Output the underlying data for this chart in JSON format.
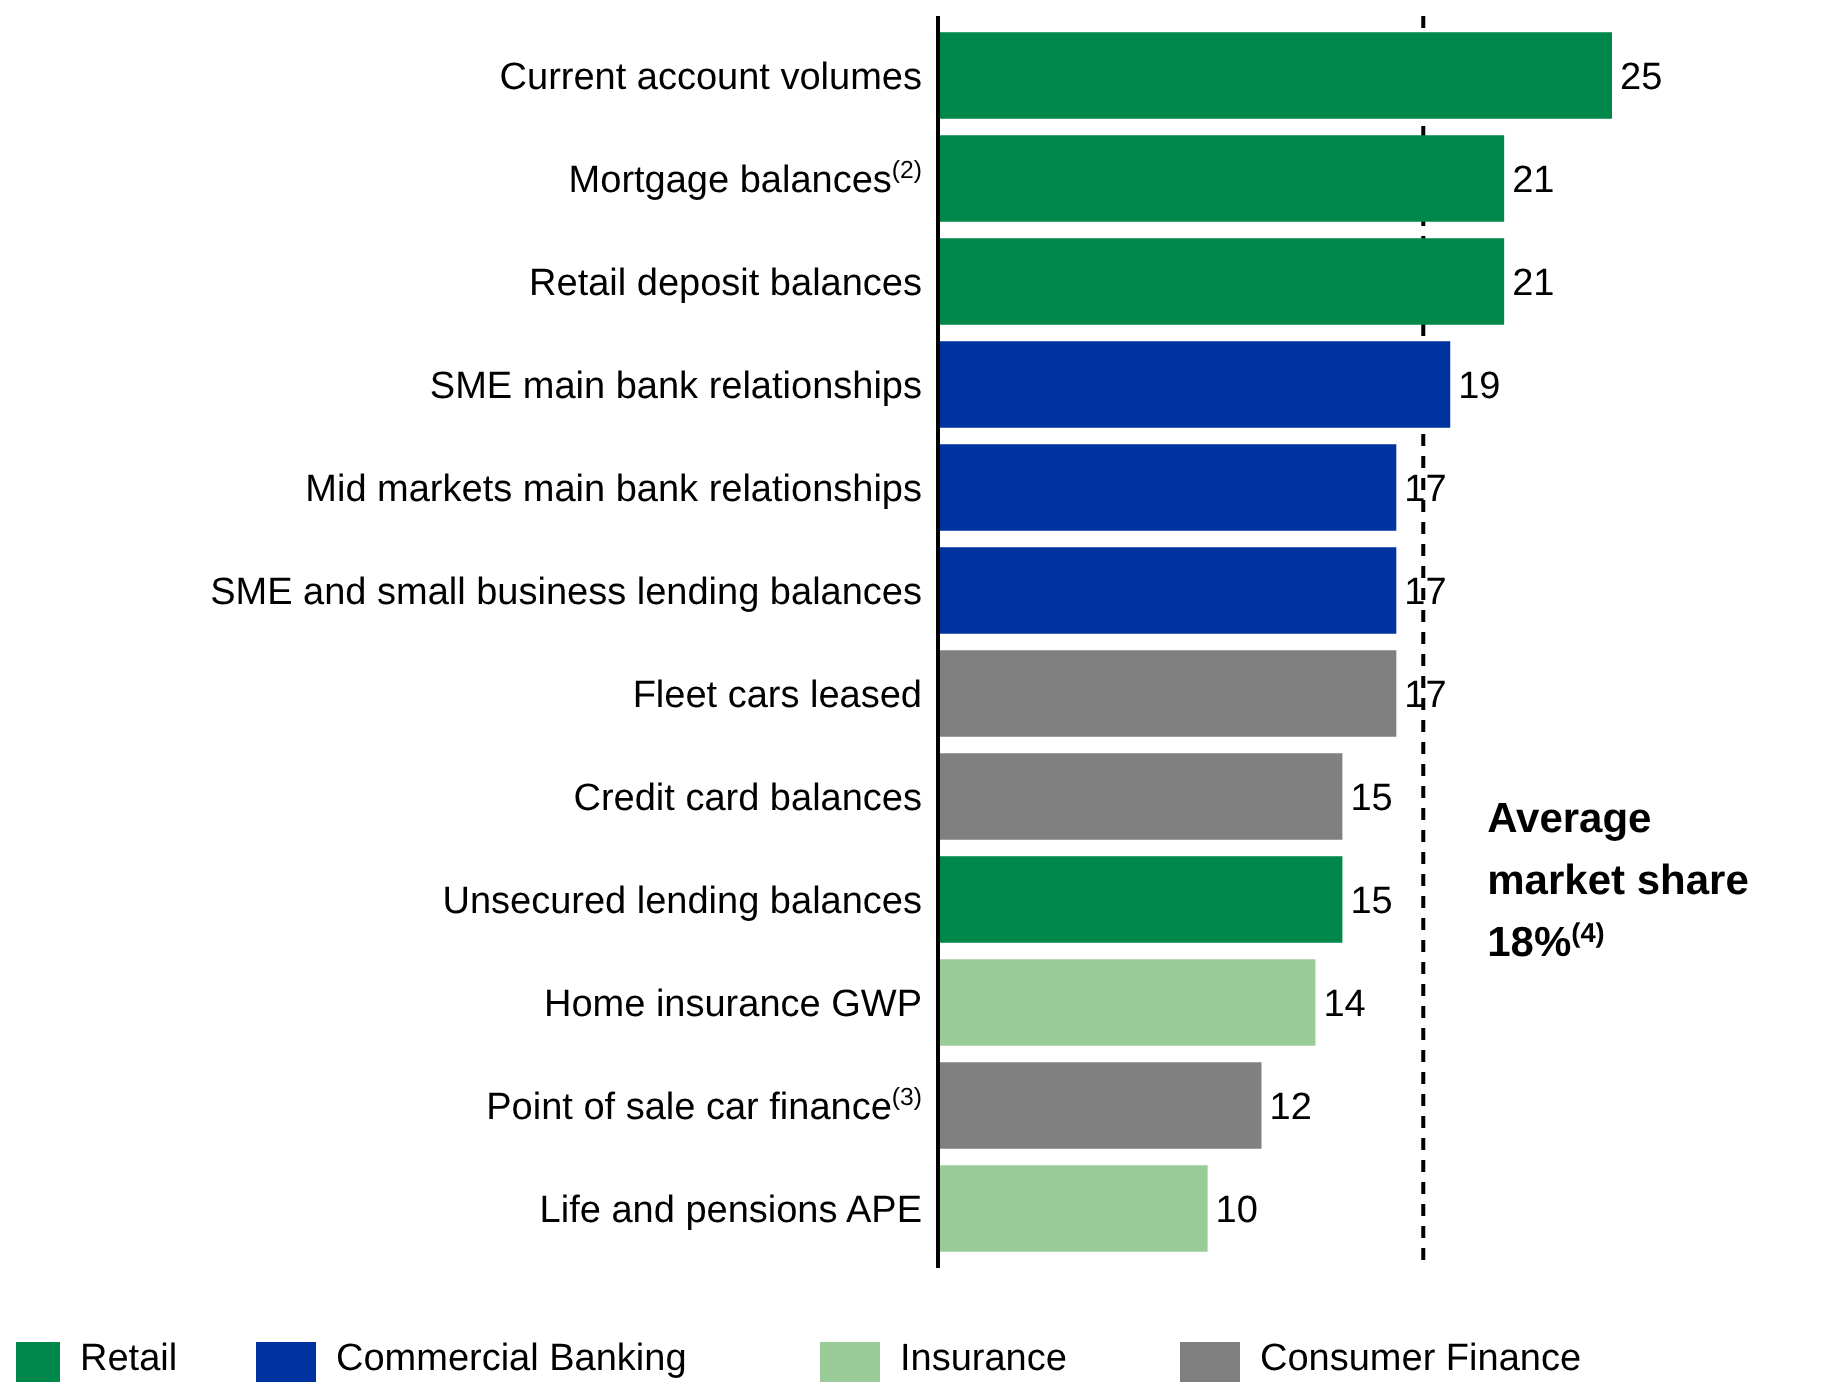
{
  "chart_data": {
    "type": "bar",
    "orientation": "horizontal",
    "stacked": true,
    "data_labels": true,
    "legend": "bottom",
    "categories": [
      "Current account volumes",
      "Mortgage balances$^{(2)}$",
      "Retail deposit balances",
      "SME main bank relationships",
      "Mid markets main bank relationships",
      "SME and small business lending balances",
      "Fleet cars leased",
      "Credit card balances",
      "Unsecured lending balances",
      "Home insurance GWP",
      "Point of sale car finance$^{(3)}$",
      "Life and pensions APE"
    ],
    "series": [
      {
        "name": "Retail",
        "color": "#00884a",
        "values": [
          25,
          21,
          21,
          null,
          null,
          null,
          null,
          null,
          15,
          null,
          null,
          null
        ]
      },
      {
        "name": "Commercial Banking",
        "color": "#0033a0",
        "values": [
          null,
          null,
          null,
          19,
          17,
          17,
          null,
          null,
          null,
          null,
          null,
          null
        ]
      },
      {
        "name": "Insurance",
        "color": "#99cc99",
        "values": [
          null,
          null,
          null,
          null,
          null,
          null,
          null,
          null,
          null,
          14,
          null,
          10
        ]
      },
      {
        "name": "Consumer Finance",
        "color": "#808080",
        "values": [
          null,
          null,
          null,
          null,
          null,
          null,
          17,
          15,
          null,
          null,
          12,
          null
        ]
      }
    ],
    "ref_lines": [
      {
        "axis": "x",
        "value": 18,
        "label": "Average market share 18%$^{(4)}$",
        "line_style": "dashed",
        "color": "#000000"
      }
    ]
  }
}
